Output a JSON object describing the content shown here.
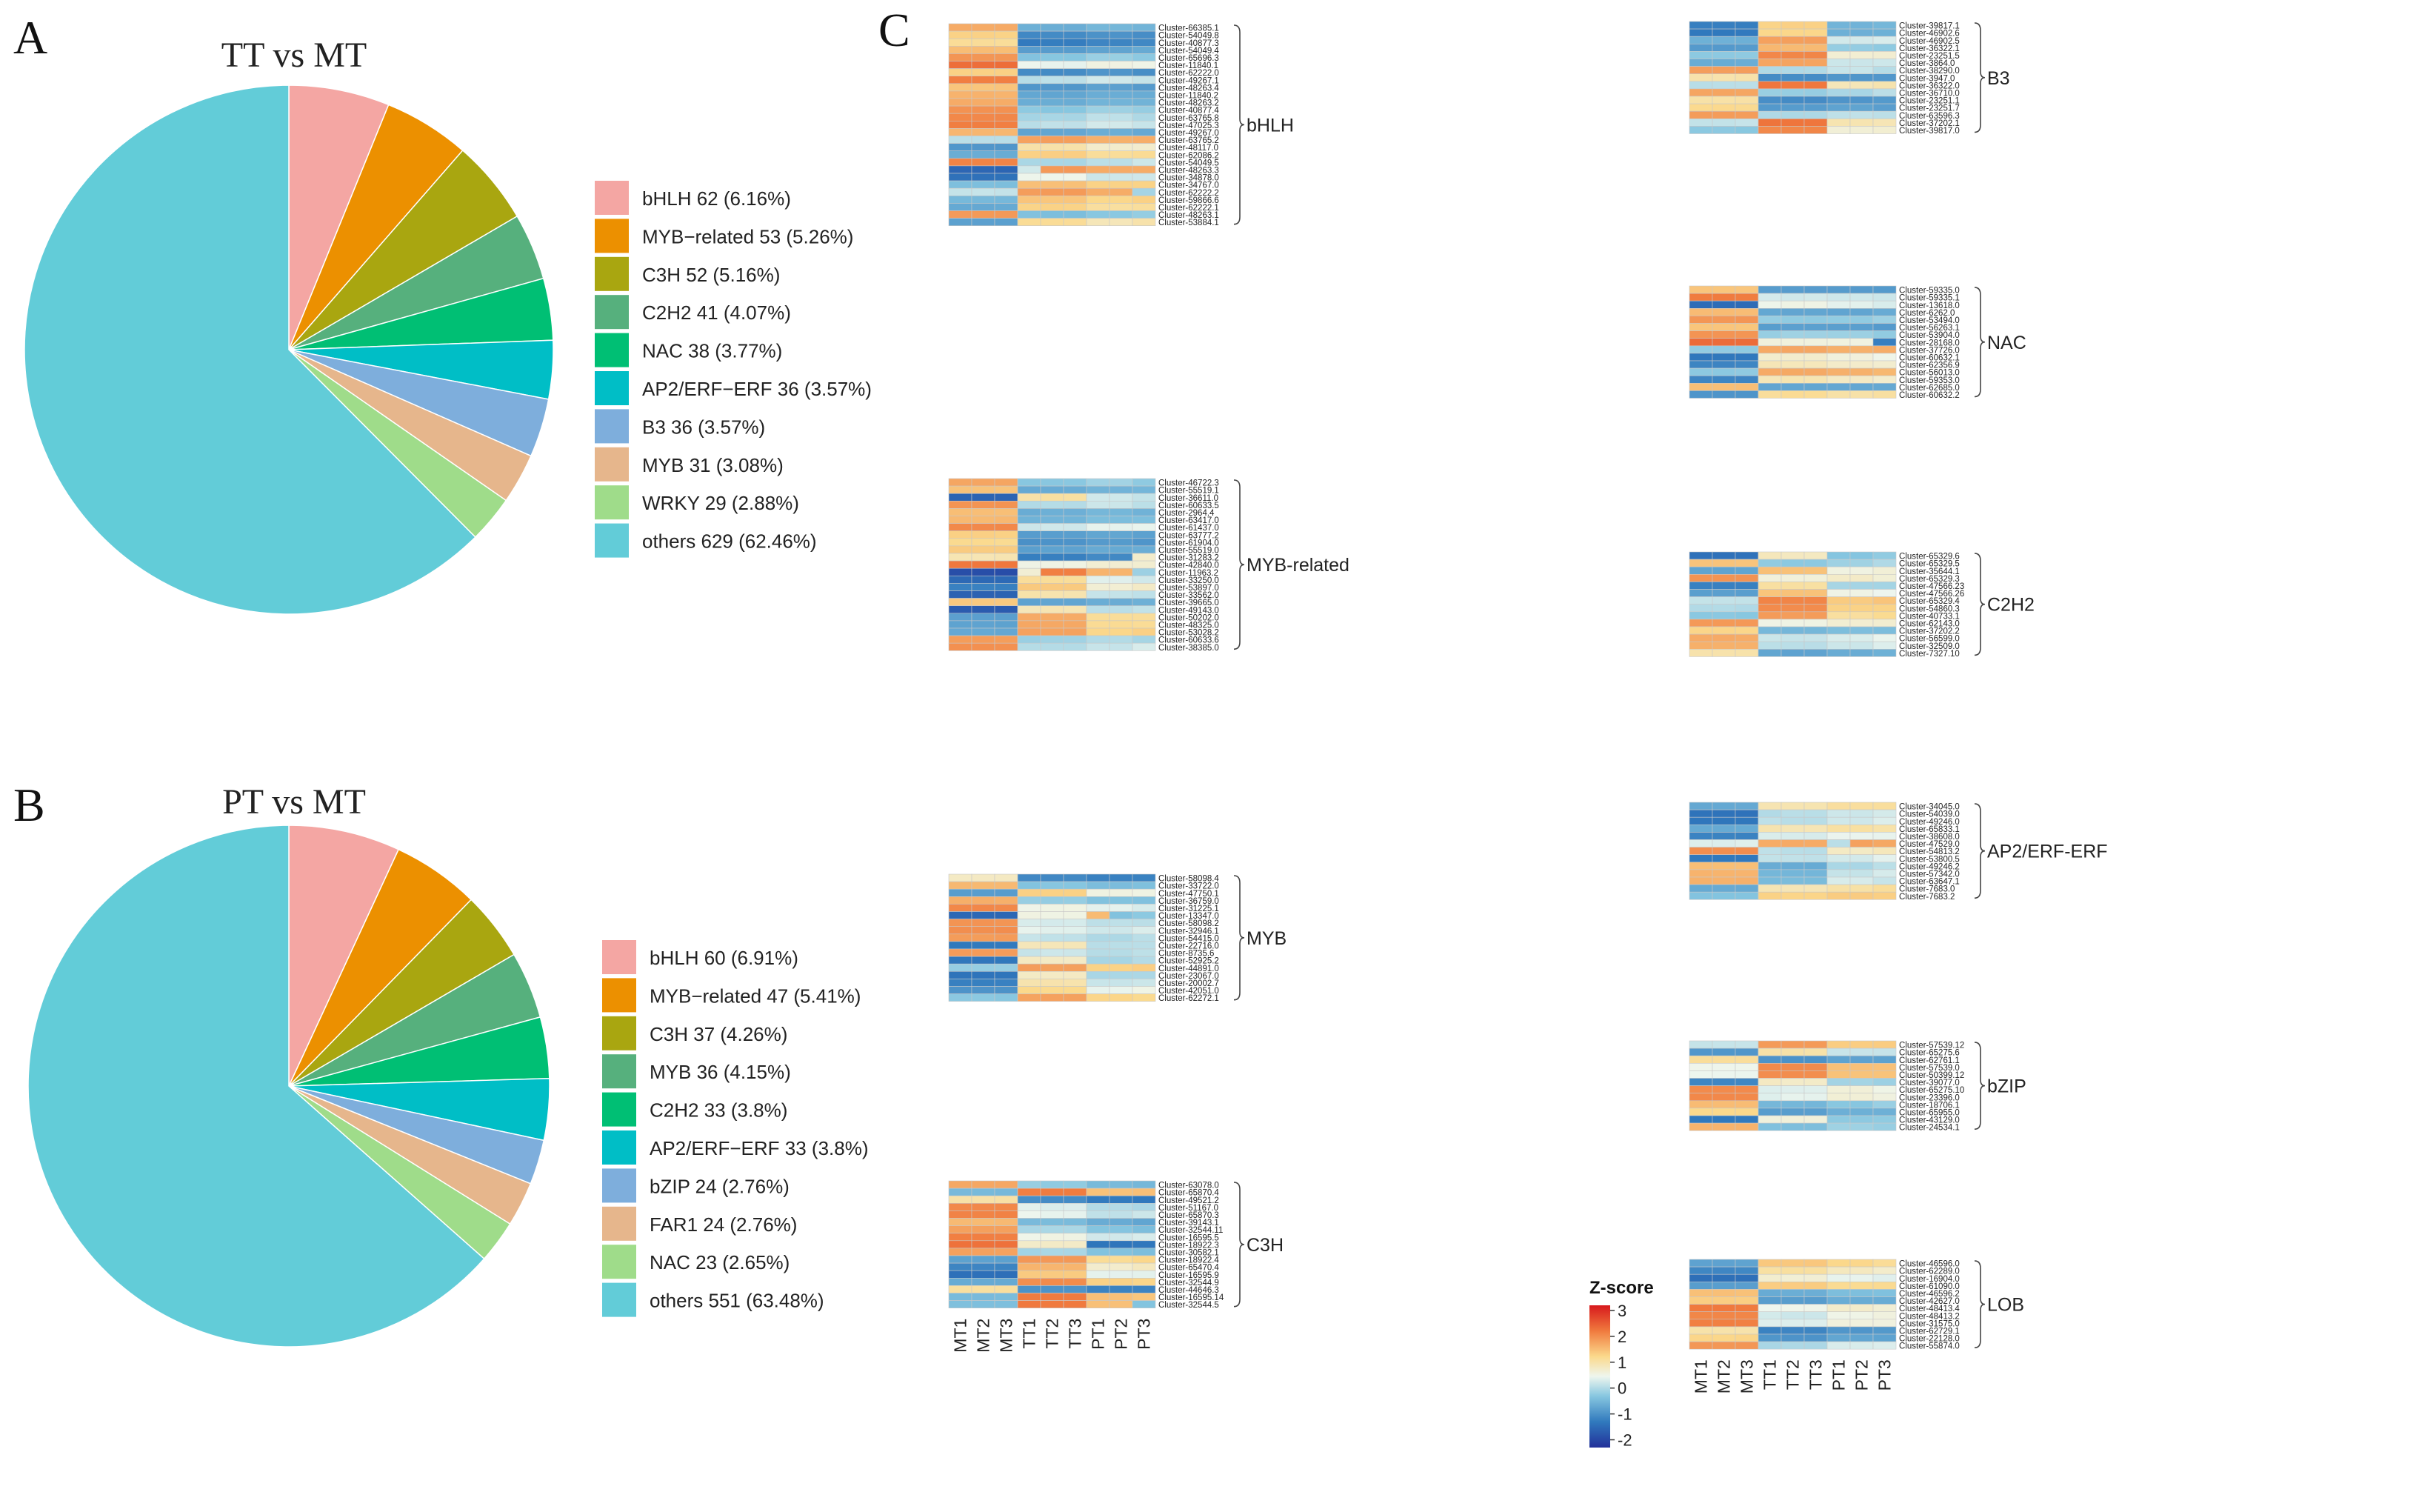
{
  "figure": {
    "panel_labels": [
      "A",
      "B",
      "C"
    ]
  },
  "chart_data": [
    {
      "type": "pie",
      "panel": "A",
      "title": "TT vs MT",
      "slices": [
        {
          "label": "bHLH 62 (6.16%)",
          "value": 62,
          "color": "#f4a6a3"
        },
        {
          "label": "MYB−related 53 (5.26%)",
          "value": 53,
          "color": "#ec9000"
        },
        {
          "label": "C3H 52 (5.16%)",
          "value": 52,
          "color": "#a9a610"
        },
        {
          "label": "C2H2 41 (4.07%)",
          "value": 41,
          "color": "#56b07d"
        },
        {
          "label": "NAC 38 (3.77%)",
          "value": 38,
          "color": "#00bf74"
        },
        {
          "label": "AP2/ERF−ERF 36 (3.57%)",
          "value": 36,
          "color": "#00bec6"
        },
        {
          "label": "B3 36 (3.57%)",
          "value": 36,
          "color": "#7eaedc"
        },
        {
          "label": "MYB 31 (3.08%)",
          "value": 31,
          "color": "#e6b68c"
        },
        {
          "label": "WRKY 29 (2.88%)",
          "value": 29,
          "color": "#9fdc8a"
        },
        {
          "label": "others 629 (62.46%)",
          "value": 629,
          "color": "#62ccd8"
        }
      ]
    },
    {
      "type": "pie",
      "panel": "B",
      "title": "PT vs MT",
      "slices": [
        {
          "label": "bHLH 60 (6.91%)",
          "value": 60,
          "color": "#f4a6a3"
        },
        {
          "label": "MYB−related 47 (5.41%)",
          "value": 47,
          "color": "#ec9000"
        },
        {
          "label": "C3H 37 (4.26%)",
          "value": 37,
          "color": "#a9a610"
        },
        {
          "label": "MYB 36 (4.15%)",
          "value": 36,
          "color": "#56b07d"
        },
        {
          "label": "C2H2 33 (3.8%)",
          "value": 33,
          "color": "#00bf74"
        },
        {
          "label": "AP2/ERF−ERF 33 (3.8%)",
          "value": 33,
          "color": "#00bec6"
        },
        {
          "label": "bZIP 24 (2.76%)",
          "value": 24,
          "color": "#7eaedc"
        },
        {
          "label": "FAR1 24 (2.76%)",
          "value": 24,
          "color": "#e6b68c"
        },
        {
          "label": "NAC 23 (2.65%)",
          "value": 23,
          "color": "#9fdc8a"
        },
        {
          "label": "others 551 (63.48%)",
          "value": 551,
          "color": "#62ccd8"
        }
      ]
    },
    {
      "type": "heatmap",
      "panel": "C",
      "columns": [
        "MT1",
        "MT2",
        "MT3",
        "TT1",
        "TT2",
        "TT3",
        "PT1",
        "PT2",
        "PT3"
      ],
      "colorbar": {
        "title": "Z-score",
        "ticks": [
          3,
          2,
          1,
          0,
          -1,
          -2
        ],
        "range": [
          -2.3,
          3.2
        ]
      },
      "families": [
        {
          "name": "bHLH",
          "rows": [
            "Cluster-66385.1",
            "Cluster-54049.8",
            "Cluster-40877.3",
            "Cluster-54049.4",
            "Cluster-65696.3",
            "Cluster-11840.1",
            "Cluster-62222.0",
            "Cluster-49267.1",
            "Cluster-48263.4",
            "Cluster-11840.2",
            "Cluster-48263.2",
            "Cluster-40877.4",
            "Cluster-63765.8",
            "Cluster-47025.3",
            "Cluster-49267.0",
            "Cluster-63765.2",
            "Cluster-48117.0",
            "Cluster-62086.2",
            "Cluster-54049.5",
            "Cluster-48263.3",
            "Cluster-34878.0",
            "Cluster-34767.0",
            "Cluster-62222.2",
            "Cluster-59866.6",
            "Cluster-62222.1",
            "Cluster-48263.1",
            "Cluster-53884.1"
          ]
        },
        {
          "name": "MYB-related",
          "rows": [
            "Cluster-46722.3",
            "Cluster-55519.1",
            "Cluster-36611.0",
            "Cluster-60633.5",
            "Cluster-2964.4",
            "Cluster-63417.0",
            "Cluster-61437.0",
            "Cluster-63777.2",
            "Cluster-61904.0",
            "Cluster-55519.0",
            "Cluster-31283.2",
            "Cluster-42840.0",
            "Cluster-11963.2",
            "Cluster-33250.0",
            "Cluster-53897.0",
            "Cluster-33562.0",
            "Cluster-39665.0",
            "Cluster-49143.0",
            "Cluster-50202.0",
            "Cluster-48325.0",
            "Cluster-53028.2",
            "Cluster-60633.6",
            "Cluster-38385.0"
          ]
        },
        {
          "name": "MYB",
          "rows": [
            "Cluster-58098.4",
            "Cluster-33722.0",
            "Cluster-47750.1",
            "Cluster-36759.0",
            "Cluster-31225.1",
            "Cluster-13347.0",
            "Cluster-58098.2",
            "Cluster-32946.1",
            "Cluster-54415.0",
            "Cluster-22716.0",
            "Cluster-8735.6",
            "Cluster-52925.2",
            "Cluster-44891.0",
            "Cluster-23067.0",
            "Cluster-20002.7",
            "Cluster-42051.0",
            "Cluster-62272.1"
          ]
        },
        {
          "name": "C3H",
          "rows": [
            "Cluster-63078.0",
            "Cluster-65870.4",
            "Cluster-49521.2",
            "Cluster-51167.0",
            "Cluster-65870.3",
            "Cluster-39143.1",
            "Cluster-32544.11",
            "Cluster-16595.5",
            "Cluster-18922.3",
            "Cluster-30582.1",
            "Cluster-18922.4",
            "Cluster-65470.4",
            "Cluster-16595.9",
            "Cluster-32544.9",
            "Cluster-44646.3",
            "Cluster-16595.14",
            "Cluster-32544.5"
          ]
        },
        {
          "name": "B3",
          "rows": [
            "Cluster-39817.1",
            "Cluster-46902.6",
            "Cluster-46902.5",
            "Cluster-36322.1",
            "Cluster-23251.5",
            "Cluster-3864.0",
            "Cluster-38290.0",
            "Cluster-3947.0",
            "Cluster-36322.0",
            "Cluster-36710.0",
            "Cluster-23251.1",
            "Cluster-23251.7",
            "Cluster-63596.3",
            "Cluster-37202.1",
            "Cluster-39817.0"
          ]
        },
        {
          "name": "NAC",
          "rows": [
            "Cluster-59335.0",
            "Cluster-59335.1",
            "Cluster-13618.0",
            "Cluster-6262.0",
            "Cluster-53494.0",
            "Cluster-56263.1",
            "Cluster-53904.0",
            "Cluster-28168.0",
            "Cluster-37726.0",
            "Cluster-60632.1",
            "Cluster-62356.9",
            "Cluster-56013.0",
            "Cluster-59353.0",
            "Cluster-62685.0",
            "Cluster-60632.2"
          ]
        },
        {
          "name": "C2H2",
          "rows": [
            "Cluster-65329.6",
            "Cluster-65329.5",
            "Cluster-35644.1",
            "Cluster-65329.3",
            "Cluster-47566.23",
            "Cluster-47566.26",
            "Cluster-65329.4",
            "Cluster-54860.3",
            "Cluster-40733.1",
            "Cluster-62143.0",
            "Cluster-37202.2",
            "Cluster-56599.0",
            "Cluster-32509.0",
            "Cluster-7327.10"
          ]
        },
        {
          "name": "AP2/ERF-ERF",
          "rows": [
            "Cluster-34045.0",
            "Cluster-54039.0",
            "Cluster-49246.0",
            "Cluster-65833.1",
            "Cluster-38608.0",
            "Cluster-47529.0",
            "Cluster-54813.2",
            "Cluster-53800.5",
            "Cluster-49246.2",
            "Cluster-57342.0",
            "Cluster-63647.1",
            "Cluster-7683.0",
            "Cluster-7683.2"
          ]
        },
        {
          "name": "bZIP",
          "rows": [
            "Cluster-57539.12",
            "Cluster-65275.6",
            "Cluster-62761.1",
            "Cluster-57539.0",
            "Cluster-50399.12",
            "Cluster-39077.0",
            "Cluster-65275.10",
            "Cluster-23396.0",
            "Cluster-18706.1",
            "Cluster-65955.0",
            "Cluster-43129.0",
            "Cluster-24534.1"
          ]
        },
        {
          "name": "LOB",
          "rows": [
            "Cluster-46596.0",
            "Cluster-62289.0",
            "Cluster-16904.0",
            "Cluster-61090.0",
            "Cluster-46596.2",
            "Cluster-42627.0",
            "Cluster-48413.4",
            "Cluster-48413.2",
            "Cluster-31575.0",
            "Cluster-62729.1",
            "Cluster-22128.0",
            "Cluster-55874.0"
          ]
        }
      ]
    }
  ]
}
